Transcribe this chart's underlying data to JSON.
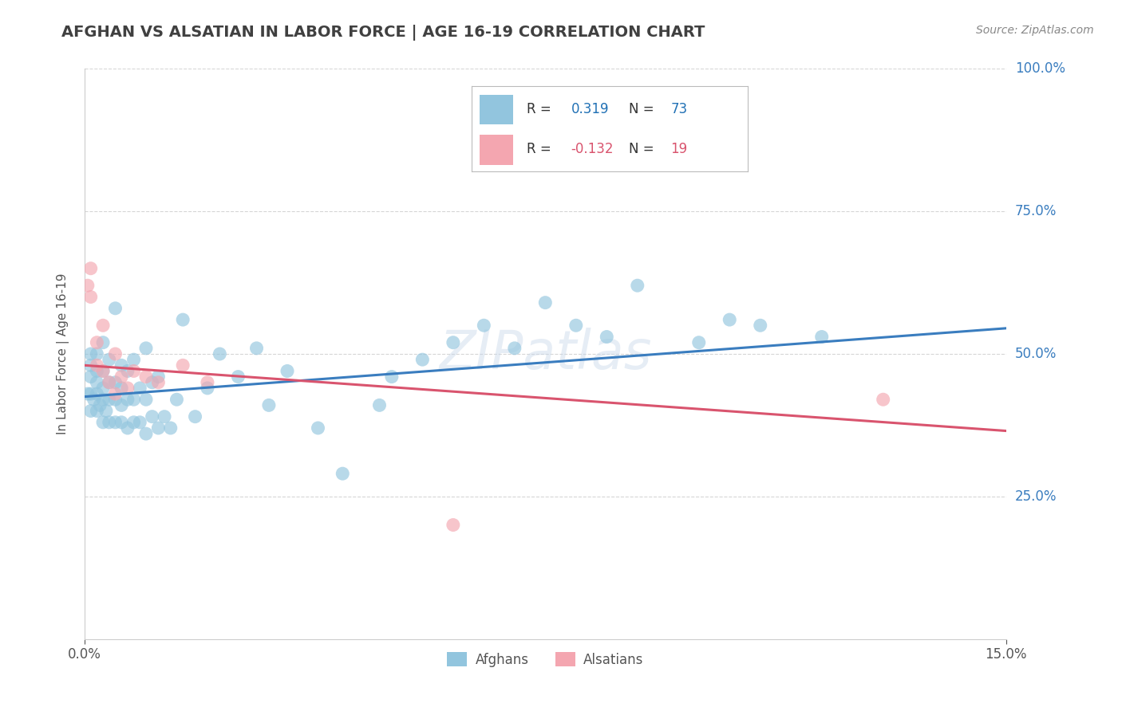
{
  "title": "AFGHAN VS ALSATIAN IN LABOR FORCE | AGE 16-19 CORRELATION CHART",
  "source": "Source: ZipAtlas.com",
  "ylabel": "In Labor Force | Age 16-19",
  "xlim": [
    0.0,
    0.15
  ],
  "ylim": [
    0.0,
    1.0
  ],
  "ytick_labels": [
    "25.0%",
    "50.0%",
    "75.0%",
    "100.0%"
  ],
  "ytick_positions": [
    0.25,
    0.5,
    0.75,
    1.0
  ],
  "legend_labels": [
    "Afghans",
    "Alsatians"
  ],
  "afghan_color": "#92c5de",
  "alsatian_color": "#f4a6b0",
  "afghan_line_color": "#3a7dbf",
  "alsatian_line_color": "#d9546e",
  "R_afghan": 0.319,
  "N_afghan": 73,
  "R_alsatian": -0.132,
  "N_alsatian": 19,
  "background_color": "#ffffff",
  "grid_color": "#cccccc",
  "title_color": "#404040",
  "afghan_line_y0": 0.425,
  "afghan_line_y1": 0.545,
  "alsatian_line_y0": 0.48,
  "alsatian_line_y1": 0.365,
  "afghan_x": [
    0.0005,
    0.001,
    0.001,
    0.001,
    0.001,
    0.001,
    0.0015,
    0.002,
    0.002,
    0.002,
    0.002,
    0.002,
    0.0025,
    0.003,
    0.003,
    0.003,
    0.003,
    0.003,
    0.0035,
    0.004,
    0.004,
    0.004,
    0.004,
    0.005,
    0.005,
    0.005,
    0.005,
    0.006,
    0.006,
    0.006,
    0.006,
    0.007,
    0.007,
    0.007,
    0.008,
    0.008,
    0.008,
    0.009,
    0.009,
    0.01,
    0.01,
    0.01,
    0.011,
    0.011,
    0.012,
    0.012,
    0.013,
    0.014,
    0.015,
    0.016,
    0.018,
    0.02,
    0.022,
    0.025,
    0.028,
    0.03,
    0.033,
    0.038,
    0.042,
    0.048,
    0.05,
    0.055,
    0.06,
    0.065,
    0.07,
    0.075,
    0.08,
    0.085,
    0.09,
    0.1,
    0.105,
    0.11,
    0.12
  ],
  "afghan_y": [
    0.43,
    0.4,
    0.43,
    0.46,
    0.48,
    0.5,
    0.42,
    0.4,
    0.43,
    0.45,
    0.47,
    0.5,
    0.41,
    0.38,
    0.42,
    0.44,
    0.47,
    0.52,
    0.4,
    0.38,
    0.42,
    0.45,
    0.49,
    0.38,
    0.42,
    0.45,
    0.58,
    0.38,
    0.41,
    0.44,
    0.48,
    0.37,
    0.42,
    0.47,
    0.38,
    0.42,
    0.49,
    0.38,
    0.44,
    0.36,
    0.42,
    0.51,
    0.39,
    0.45,
    0.37,
    0.46,
    0.39,
    0.37,
    0.42,
    0.56,
    0.39,
    0.44,
    0.5,
    0.46,
    0.51,
    0.41,
    0.47,
    0.37,
    0.29,
    0.41,
    0.46,
    0.49,
    0.52,
    0.55,
    0.51,
    0.59,
    0.55,
    0.53,
    0.62,
    0.52,
    0.56,
    0.55,
    0.53
  ],
  "alsatian_x": [
    0.0005,
    0.001,
    0.001,
    0.002,
    0.002,
    0.003,
    0.003,
    0.004,
    0.005,
    0.005,
    0.006,
    0.007,
    0.008,
    0.01,
    0.012,
    0.016,
    0.02,
    0.06,
    0.13
  ],
  "alsatian_y": [
    0.62,
    0.65,
    0.6,
    0.48,
    0.52,
    0.47,
    0.55,
    0.45,
    0.5,
    0.43,
    0.46,
    0.44,
    0.47,
    0.46,
    0.45,
    0.48,
    0.45,
    0.2,
    0.42
  ]
}
